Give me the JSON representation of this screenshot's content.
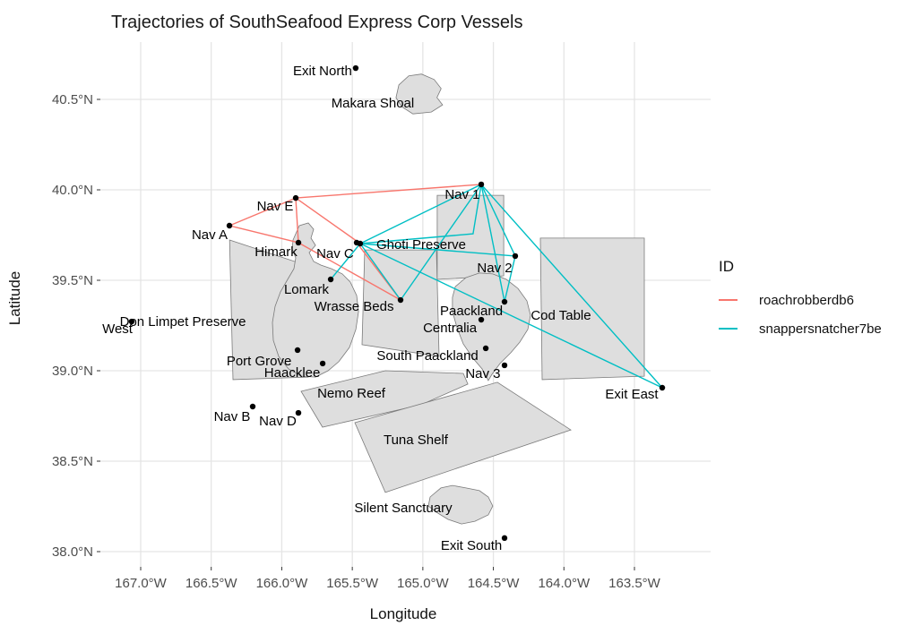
{
  "chart_data": {
    "type": "scatter",
    "title": "Trajectories of SouthSeafood Express Corp Vessels",
    "xlabel": "Longitude",
    "ylabel": "Latitude",
    "xlim": [
      -167.29,
      -162.96
    ],
    "ylim": [
      37.92,
      40.82
    ],
    "grid": true,
    "legend_position": "right",
    "x_ticks": [
      {
        "label": "167.0°W",
        "value": -167.0
      },
      {
        "label": "166.5°W",
        "value": -166.5
      },
      {
        "label": "166.0°W",
        "value": -166.0
      },
      {
        "label": "165.5°W",
        "value": -165.5
      },
      {
        "label": "165.0°W",
        "value": -165.0
      },
      {
        "label": "164.5°W",
        "value": -164.5
      },
      {
        "label": "164.0°W",
        "value": -164.0
      },
      {
        "label": "163.5°W",
        "value": -163.5
      }
    ],
    "y_ticks": [
      {
        "label": "40.5°N",
        "value": 40.5
      },
      {
        "label": "40.0°N",
        "value": 40.0
      },
      {
        "label": "39.5°N",
        "value": 39.5
      },
      {
        "label": "39.0°N",
        "value": 39.0
      },
      {
        "label": "38.5°N",
        "value": 38.5
      },
      {
        "label": "38.0°N",
        "value": 38.0
      }
    ],
    "legend": {
      "title": "ID",
      "series": [
        {
          "name": "roachrobberdb6",
          "color": "#F8766D"
        },
        {
          "name": "snappersnatcher7be",
          "color": "#00BFC4"
        }
      ]
    },
    "style": {
      "grid_color": "#E5E5E5",
      "region_fill": "#DEDEDE",
      "region_stroke": "#7a7a7a",
      "point_color": "#000000",
      "tick_text_color": "#4D4D4D",
      "label_color": "#000000"
    },
    "nodes": [
      {
        "name": "Exit North",
        "lon": -165.476,
        "lat": 40.673,
        "dot": true,
        "label_lon": -165.711,
        "label_lat": 40.658
      },
      {
        "name": "Makara Shoal",
        "lon": -165.355,
        "lat": 40.48,
        "dot": false,
        "label_lon": -165.355,
        "label_lat": 40.48
      },
      {
        "name": "Nav E",
        "lon": -165.901,
        "lat": 39.955,
        "dot": true,
        "label_lon": -166.047,
        "label_lat": 39.911
      },
      {
        "name": "Nav A",
        "lon": -166.371,
        "lat": 39.802,
        "dot": true,
        "label_lon": -166.511,
        "label_lat": 39.752
      },
      {
        "name": "Himark",
        "lon": -165.882,
        "lat": 39.708,
        "dot": true,
        "label_lon": -166.041,
        "label_lat": 39.658
      },
      {
        "name": "Nav C",
        "lon": -165.469,
        "lat": 39.708,
        "dot": true,
        "label_lon": -165.622,
        "label_lat": 39.649
      },
      {
        "name": "Ghoti Preserve",
        "lon": -165.444,
        "lat": 39.703,
        "dot": true,
        "label_lon": -165.012,
        "label_lat": 39.698
      },
      {
        "name": "Nav 1",
        "lon": -164.586,
        "lat": 40.03,
        "dot": true,
        "label_lon": -164.72,
        "label_lat": 39.975
      },
      {
        "name": "Nav 2",
        "lon": -164.345,
        "lat": 39.634,
        "dot": true,
        "label_lon": -164.491,
        "label_lat": 39.569
      },
      {
        "name": "Lomark",
        "lon": -165.653,
        "lat": 39.505,
        "dot": true,
        "label_lon": -165.825,
        "label_lat": 39.45
      },
      {
        "name": "Wrasse Beds",
        "lon": -165.158,
        "lat": 39.391,
        "dot": true,
        "label_lon": -165.488,
        "label_lat": 39.356
      },
      {
        "name": "Don Limpet Preserve",
        "lon": -167.064,
        "lat": 39.272,
        "dot": true,
        "label_lon": -166.701,
        "label_lat": 39.272
      },
      {
        "name": "West",
        "lon": -167.165,
        "lat": 39.233,
        "dot": false,
        "label_lon": -167.165,
        "label_lat": 39.233
      },
      {
        "name": "Paackland",
        "lon": -164.421,
        "lat": 39.381,
        "dot": true,
        "label_lon": -164.656,
        "label_lat": 39.332
      },
      {
        "name": "Centralia",
        "lon": -164.586,
        "lat": 39.282,
        "dot": true,
        "label_lon": -164.808,
        "label_lat": 39.238
      },
      {
        "name": "Cod Table",
        "lon": -164.021,
        "lat": 39.307,
        "dot": false,
        "label_lon": -164.021,
        "label_lat": 39.307
      },
      {
        "name": "South Paackland",
        "lon": -164.554,
        "lat": 39.124,
        "dot": true,
        "label_lon": -164.967,
        "label_lat": 39.084
      },
      {
        "name": "Nav 3",
        "lon": -164.421,
        "lat": 39.03,
        "dot": true,
        "label_lon": -164.574,
        "label_lat": 38.985
      },
      {
        "name": "Port Grove",
        "lon": -165.888,
        "lat": 39.114,
        "dot": true,
        "label_lon": -166.161,
        "label_lat": 39.055
      },
      {
        "name": "Haacklee",
        "lon": -165.71,
        "lat": 39.04,
        "dot": true,
        "label_lon": -165.926,
        "label_lat": 38.99
      },
      {
        "name": "Nemo Reef",
        "lon": -165.507,
        "lat": 38.876,
        "dot": false,
        "label_lon": -165.507,
        "label_lat": 38.876
      },
      {
        "name": "Nav B",
        "lon": -166.206,
        "lat": 38.802,
        "dot": true,
        "label_lon": -166.352,
        "label_lat": 38.748
      },
      {
        "name": "Nav D",
        "lon": -165.882,
        "lat": 38.767,
        "dot": true,
        "label_lon": -166.028,
        "label_lat": 38.723
      },
      {
        "name": "Tuna Shelf",
        "lon": -165.05,
        "lat": 38.619,
        "dot": false,
        "label_lon": -165.05,
        "label_lat": 38.619
      },
      {
        "name": "Silent Sanctuary",
        "lon": -165.139,
        "lat": 38.243,
        "dot": false,
        "label_lon": -165.139,
        "label_lat": 38.243
      },
      {
        "name": "Exit South",
        "lon": -164.421,
        "lat": 38.075,
        "dot": true,
        "label_lon": -164.656,
        "label_lat": 38.035
      },
      {
        "name": "Exit East",
        "lon": -163.303,
        "lat": 38.906,
        "dot": true,
        "label_lon": -163.519,
        "label_lat": 38.871
      }
    ],
    "regions": [
      {
        "name": "Makara Shoal",
        "points": [
          [
            -165.17,
            40.58
          ],
          [
            -165.1,
            40.63
          ],
          [
            -165.01,
            40.64
          ],
          [
            -164.92,
            40.61
          ],
          [
            -164.87,
            40.56
          ],
          [
            -164.9,
            40.51
          ],
          [
            -164.86,
            40.47
          ],
          [
            -164.94,
            40.43
          ],
          [
            -165.07,
            40.42
          ],
          [
            -165.15,
            40.46
          ],
          [
            -165.19,
            40.51
          ]
        ]
      },
      {
        "name": "Don Limpet Preserve",
        "points": [
          [
            -166.37,
            39.723
          ],
          [
            -165.85,
            39.589
          ],
          [
            -165.812,
            38.965
          ],
          [
            -166.346,
            38.951
          ]
        ]
      },
      {
        "name": "Haacklee Island",
        "points": [
          [
            -165.92,
            39.723
          ],
          [
            -165.876,
            39.802
          ],
          [
            -165.812,
            39.817
          ],
          [
            -165.774,
            39.782
          ],
          [
            -165.793,
            39.733
          ],
          [
            -165.761,
            39.693
          ],
          [
            -165.806,
            39.653
          ],
          [
            -165.774,
            39.604
          ],
          [
            -165.723,
            39.584
          ],
          [
            -165.647,
            39.564
          ],
          [
            -165.571,
            39.535
          ],
          [
            -165.514,
            39.49
          ],
          [
            -165.469,
            39.416
          ],
          [
            -165.456,
            39.327
          ],
          [
            -165.475,
            39.228
          ],
          [
            -165.52,
            39.129
          ],
          [
            -165.596,
            39.05
          ],
          [
            -165.672,
            39.0
          ],
          [
            -165.761,
            38.965
          ],
          [
            -165.863,
            38.97
          ],
          [
            -165.952,
            39.01
          ],
          [
            -166.022,
            39.079
          ],
          [
            -166.06,
            39.168
          ],
          [
            -166.066,
            39.267
          ],
          [
            -166.047,
            39.356
          ],
          [
            -166.009,
            39.436
          ],
          [
            -165.958,
            39.505
          ],
          [
            -165.914,
            39.564
          ],
          [
            -165.901,
            39.624
          ],
          [
            -165.926,
            39.673
          ]
        ]
      },
      {
        "name": "Wrasse Beds",
        "points": [
          [
            -165.412,
            39.668
          ],
          [
            -164.904,
            39.668
          ],
          [
            -164.885,
            39.079
          ],
          [
            -165.431,
            39.144
          ]
        ]
      },
      {
        "name": "Ghoti Preserve",
        "points": [
          [
            -164.898,
            39.97
          ],
          [
            -164.427,
            39.97
          ],
          [
            -164.427,
            39.525
          ],
          [
            -164.898,
            39.505
          ]
        ]
      },
      {
        "name": "Paackland Island",
        "points": [
          [
            -164.77,
            39.465
          ],
          [
            -164.694,
            39.515
          ],
          [
            -164.599,
            39.54
          ],
          [
            -164.504,
            39.535
          ],
          [
            -164.408,
            39.505
          ],
          [
            -164.326,
            39.455
          ],
          [
            -164.262,
            39.386
          ],
          [
            -164.237,
            39.307
          ],
          [
            -164.256,
            39.228
          ],
          [
            -164.313,
            39.158
          ],
          [
            -164.377,
            39.099
          ],
          [
            -164.453,
            39.04
          ],
          [
            -164.51,
            38.98
          ],
          [
            -164.536,
            38.946
          ],
          [
            -164.58,
            39.01
          ],
          [
            -164.644,
            39.069
          ],
          [
            -164.713,
            39.148
          ],
          [
            -164.758,
            39.238
          ],
          [
            -164.79,
            39.327
          ],
          [
            -164.79,
            39.406
          ]
        ]
      },
      {
        "name": "Cod Table",
        "points": [
          [
            -164.167,
            39.733
          ],
          [
            -163.43,
            39.733
          ],
          [
            -163.43,
            38.97
          ],
          [
            -164.154,
            38.951
          ]
        ]
      },
      {
        "name": "Nemo Reef",
        "points": [
          [
            -165.863,
            38.886
          ],
          [
            -165.266,
            39.0
          ],
          [
            -164.713,
            38.985
          ],
          [
            -164.681,
            38.926
          ],
          [
            -165.012,
            38.812
          ],
          [
            -165.711,
            38.688
          ]
        ]
      },
      {
        "name": "Tuna Shelf",
        "points": [
          [
            -165.482,
            38.713
          ],
          [
            -164.472,
            38.936
          ],
          [
            -163.951,
            38.673
          ],
          [
            -165.266,
            38.327
          ]
        ]
      },
      {
        "name": "Silent Sanctuary",
        "points": [
          [
            -164.948,
            38.302
          ],
          [
            -164.872,
            38.352
          ],
          [
            -164.79,
            38.366
          ],
          [
            -164.694,
            38.352
          ],
          [
            -164.599,
            38.337
          ],
          [
            -164.536,
            38.302
          ],
          [
            -164.504,
            38.252
          ],
          [
            -164.536,
            38.203
          ],
          [
            -164.631,
            38.168
          ],
          [
            -164.726,
            38.153
          ],
          [
            -164.821,
            38.178
          ],
          [
            -164.904,
            38.218
          ],
          [
            -164.961,
            38.252
          ]
        ]
      }
    ],
    "edges": [
      {
        "series": "roachrobberdb6",
        "from": "Nav A",
        "to": "Nav E"
      },
      {
        "series": "roachrobberdb6",
        "from": "Nav A",
        "to": "Himark"
      },
      {
        "series": "roachrobberdb6",
        "from": "Nav E",
        "to": "Himark"
      },
      {
        "series": "roachrobberdb6",
        "from": "Nav E",
        "to": "Nav 1"
      },
      {
        "series": "roachrobberdb6",
        "from": "Nav E",
        "to": "Ghoti Preserve"
      },
      {
        "series": "roachrobberdb6",
        "from": "Himark",
        "to": "Wrasse Beds"
      },
      {
        "series": "roachrobberdb6",
        "from": "Nav C",
        "to": "Wrasse Beds"
      },
      {
        "series": "snappersnatcher7be",
        "from": "Ghoti Preserve",
        "to": "Nav 1"
      },
      {
        "series": "snappersnatcher7be",
        "from": "Ghoti Preserve",
        "to": "Nav 2"
      },
      {
        "series": "snappersnatcher7be",
        "from": "Ghoti Preserve",
        "to": "Lomark"
      },
      {
        "series": "snappersnatcher7be",
        "from": "Ghoti Preserve",
        "to": "Wrasse Beds"
      },
      {
        "series": "snappersnatcher7be",
        "from": "Ghoti Preserve",
        "to": "Exit East"
      },
      {
        "series": "snappersnatcher7be",
        "from": "Nav 1",
        "to": "Wrasse Beds"
      },
      {
        "series": "snappersnatcher7be",
        "from": "Nav 1",
        "to": "Paackland"
      },
      {
        "series": "snappersnatcher7be",
        "from": "Nav 1",
        "to": "Nav 2"
      },
      {
        "series": "snappersnatcher7be",
        "from": "Nav 1",
        "to": "Exit East"
      },
      {
        "series": "snappersnatcher7be",
        "from": "Nav 2",
        "to": "Paackland"
      }
    ],
    "paths": [
      {
        "series": "snappersnatcher7be",
        "points": [
          [
            -165.444,
            39.703
          ],
          [
            -164.644,
            39.757
          ],
          [
            -164.586,
            40.03
          ]
        ]
      }
    ]
  }
}
